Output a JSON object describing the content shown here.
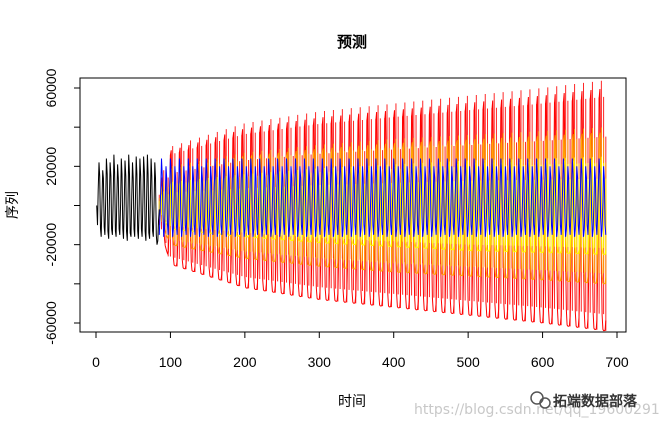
{
  "chart_data": {
    "type": "line",
    "title": "预测",
    "xlabel": "时间",
    "ylabel": "序列",
    "xlim": [
      0,
      700
    ],
    "ylim": [
      -60000,
      60000
    ],
    "x_ticks": [
      0,
      100,
      200,
      300,
      400,
      500,
      600,
      700
    ],
    "y_ticks": [
      -60000,
      -40000,
      -20000,
      0,
      20000,
      40000,
      60000
    ],
    "y_tick_labels": [
      "-60000",
      "",
      "-20000",
      "",
      "20000",
      "",
      "60000"
    ],
    "grid": false,
    "seasonal_period": 12,
    "series": [
      {
        "role": "observed",
        "color": "#000000",
        "x_start": 1,
        "values": [
          0,
          -10000,
          8000,
          22000,
          15000,
          -12000,
          -16000,
          2000,
          18000,
          14000,
          -11000,
          -15000,
          3000,
          24000,
          16000,
          -13000,
          -17000,
          2000,
          22000,
          15000,
          -12000,
          -15000,
          1000,
          26000,
          17000,
          -13000,
          -16000,
          3000,
          21000,
          14000,
          -12000,
          -15000,
          1000,
          24000,
          16000,
          -12000,
          -17000,
          2000,
          23000,
          15000,
          -13000,
          -18000,
          1000,
          26000,
          16000,
          -14000,
          -16000,
          3000,
          22000,
          14000,
          -12000,
          -16000,
          2000,
          25000,
          16000,
          -13000,
          -17000,
          1000,
          24000,
          15000,
          -12000,
          -16000,
          2000,
          25000,
          17000,
          -13000,
          -18000,
          3000,
          26000,
          16000,
          -14000,
          -17000,
          2000,
          24000,
          15000,
          -13000,
          -16000,
          1000,
          22000,
          14000,
          -15000,
          -20000,
          -18000,
          -8000,
          -2000
        ]
      },
      {
        "role": "forecast-band",
        "color": "#ff0000",
        "x_start": 85,
        "x_end": 685,
        "upper_bound": [
          [
            85,
            10000
          ],
          [
            100,
            30000
          ],
          [
            200,
            42000
          ],
          [
            300,
            48000
          ],
          [
            400,
            52000
          ],
          [
            500,
            56000
          ],
          [
            600,
            60000
          ],
          [
            685,
            64000
          ]
        ],
        "lower_bound": [
          [
            85,
            -10000
          ],
          [
            100,
            -30000
          ],
          [
            200,
            -42000
          ],
          [
            300,
            -48000
          ],
          [
            400,
            -52000
          ],
          [
            500,
            -56000
          ],
          [
            600,
            -60000
          ],
          [
            685,
            -64000
          ]
        ]
      },
      {
        "role": "forecast-band",
        "color": "#ffa500",
        "x_start": 85,
        "x_end": 685,
        "upper_bound": [
          [
            85,
            7000
          ],
          [
            100,
            20000
          ],
          [
            200,
            27000
          ],
          [
            300,
            31000
          ],
          [
            400,
            34000
          ],
          [
            500,
            36000
          ],
          [
            600,
            38000
          ],
          [
            685,
            40000
          ]
        ],
        "lower_bound": [
          [
            85,
            -7000
          ],
          [
            100,
            -20000
          ],
          [
            200,
            -27000
          ],
          [
            300,
            -31000
          ],
          [
            400,
            -34000
          ],
          [
            500,
            -36000
          ],
          [
            600,
            -38000
          ],
          [
            685,
            -40000
          ]
        ]
      },
      {
        "role": "forecast-band",
        "color": "#ffff00",
        "x_start": 85,
        "x_end": 685,
        "upper_bound": [
          [
            85,
            4000
          ],
          [
            100,
            12000
          ],
          [
            200,
            16000
          ],
          [
            300,
            19000
          ],
          [
            400,
            21000
          ],
          [
            500,
            23000
          ],
          [
            600,
            24000
          ],
          [
            685,
            25000
          ]
        ],
        "lower_bound": [
          [
            85,
            -4000
          ],
          [
            100,
            -12000
          ],
          [
            200,
            -16000
          ],
          [
            300,
            -19000
          ],
          [
            400,
            -21000
          ],
          [
            500,
            -23000
          ],
          [
            600,
            -24000
          ],
          [
            685,
            -25000
          ]
        ]
      },
      {
        "role": "forecast",
        "color": "#0000ff",
        "x_start": 85,
        "x_end": 685,
        "cycle_values": [
          -15000,
          -5000,
          10000,
          24000,
          16000,
          -6000,
          -16000,
          -12000,
          2000,
          20000,
          14000,
          -10000
        ]
      }
    ]
  },
  "watermark": {
    "url_text": "https://blog.csdn.net/qq_19600291",
    "brand_text": "拓端数据部落"
  }
}
